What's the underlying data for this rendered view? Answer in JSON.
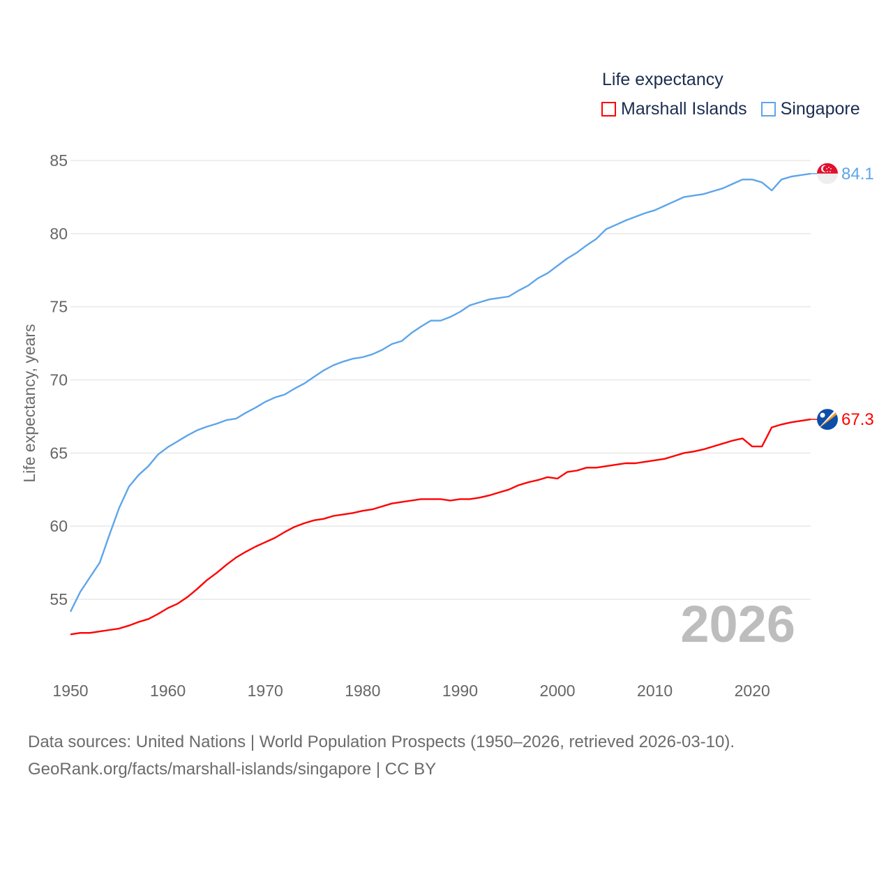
{
  "chart_data": {
    "type": "line",
    "title": "Life expectancy",
    "ylabel": "Life expectancy, years",
    "xlabel": "",
    "xlim": [
      1950,
      2026
    ],
    "ylim": [
      52,
      85
    ],
    "x_ticks": [
      1950,
      1960,
      1970,
      1980,
      1990,
      2000,
      2010,
      2020
    ],
    "y_ticks": [
      55,
      60,
      65,
      70,
      75,
      80,
      85
    ],
    "grid": true,
    "legend_placement": "top-right",
    "year_watermark": "2026",
    "x": [
      1950,
      1951,
      1952,
      1953,
      1954,
      1955,
      1956,
      1957,
      1958,
      1959,
      1960,
      1961,
      1962,
      1963,
      1964,
      1965,
      1966,
      1967,
      1968,
      1969,
      1970,
      1971,
      1972,
      1973,
      1974,
      1975,
      1976,
      1977,
      1978,
      1979,
      1980,
      1981,
      1982,
      1983,
      1984,
      1985,
      1986,
      1987,
      1988,
      1989,
      1990,
      1991,
      1992,
      1993,
      1994,
      1995,
      1996,
      1997,
      1998,
      1999,
      2000,
      2001,
      2002,
      2003,
      2004,
      2005,
      2006,
      2007,
      2008,
      2009,
      2010,
      2011,
      2012,
      2013,
      2014,
      2015,
      2016,
      2017,
      2018,
      2019,
      2020,
      2021,
      2022,
      2023,
      2024,
      2025,
      2026
    ],
    "series": [
      {
        "name": "Marshall Islands",
        "color": "#ff0000",
        "end_label": "67.3",
        "flag": "marshall-islands-flag",
        "values": [
          52.6,
          52.7,
          52.7,
          52.8,
          52.9,
          53.0,
          53.2,
          53.45,
          53.65,
          54.0,
          54.4,
          54.7,
          55.15,
          55.7,
          56.3,
          56.8,
          57.35,
          57.85,
          58.25,
          58.6,
          58.9,
          59.2,
          59.6,
          59.95,
          60.2,
          60.4,
          60.5,
          60.7,
          60.8,
          60.9,
          61.05,
          61.15,
          61.35,
          61.55,
          61.65,
          61.75,
          61.85,
          61.85,
          61.85,
          61.75,
          61.85,
          61.85,
          61.95,
          62.1,
          62.3,
          62.5,
          62.8,
          63.0,
          63.15,
          63.35,
          63.25,
          63.7,
          63.8,
          64.0,
          64.0,
          64.1,
          64.2,
          64.3,
          64.3,
          64.4,
          64.5,
          64.6,
          64.8,
          65.0,
          65.1,
          65.25,
          65.45,
          65.65,
          65.85,
          66.0,
          65.45,
          65.45,
          66.75,
          66.95,
          67.1,
          67.2,
          67.3
        ]
      },
      {
        "name": "Singapore",
        "color": "#5da5ea",
        "end_label": "84.1",
        "flag": "singapore-flag",
        "values": [
          54.15,
          55.5,
          56.5,
          57.5,
          59.4,
          61.25,
          62.7,
          63.5,
          64.1,
          64.9,
          65.4,
          65.8,
          66.2,
          66.55,
          66.8,
          67.0,
          67.25,
          67.35,
          67.75,
          68.1,
          68.5,
          68.8,
          69.0,
          69.4,
          69.75,
          70.2,
          70.65,
          71.0,
          71.25,
          71.45,
          71.55,
          71.75,
          72.05,
          72.45,
          72.65,
          73.2,
          73.65,
          74.05,
          74.05,
          74.3,
          74.65,
          75.1,
          75.3,
          75.5,
          75.6,
          75.7,
          76.1,
          76.45,
          76.95,
          77.3,
          77.8,
          78.3,
          78.7,
          79.2,
          79.65,
          80.3,
          80.6,
          80.9,
          81.15,
          81.4,
          81.6,
          81.9,
          82.2,
          82.5,
          82.6,
          82.7,
          82.9,
          83.1,
          83.4,
          83.7,
          83.7,
          83.5,
          82.95,
          83.7,
          83.9,
          84.0,
          84.1
        ]
      }
    ]
  },
  "legend": {
    "title": "Life expectancy",
    "items": [
      "Marshall Islands",
      "Singapore"
    ]
  },
  "footer": {
    "line1": "Data sources: United Nations | World Population Prospects (1950–2026, retrieved 2026-03-10).",
    "line2": "GeoRank.org/facts/marshall-islands/singapore | CC BY"
  }
}
